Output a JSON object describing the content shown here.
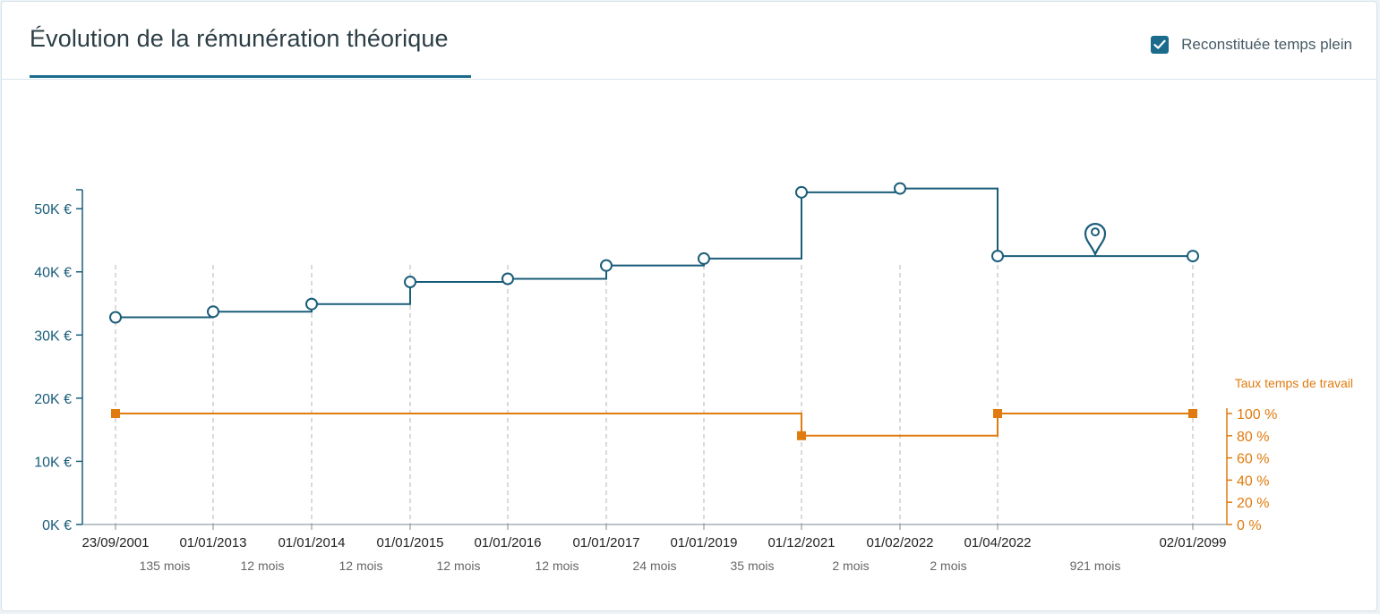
{
  "header": {
    "title": "Évolution de la rémunération théorique",
    "toggle_label": "Reconstituée temps plein",
    "toggle_checked": true
  },
  "colors": {
    "salary": "#1a5d7a",
    "rate": "#e07b0f",
    "accent": "#1a6b8c"
  },
  "icons": {
    "checkbox": "check-icon",
    "current_marker": "map-pin-icon"
  },
  "chart_data": {
    "type": "line",
    "step": true,
    "x_dates": [
      "23/09/2001",
      "01/01/2013",
      "01/01/2014",
      "01/01/2015",
      "01/01/2016",
      "01/01/2017",
      "01/01/2019",
      "01/12/2021",
      "01/02/2022",
      "01/04/2022",
      "02/01/2099"
    ],
    "durations": [
      "135 mois",
      "12 mois",
      "12 mois",
      "12 mois",
      "12 mois",
      "24 mois",
      "35 mois",
      "2 mois",
      "2 mois",
      "921 mois"
    ],
    "salary": {
      "values_k_eur": [
        32.8,
        33.7,
        34.9,
        38.4,
        38.9,
        41.0,
        42.1,
        52.6,
        53.2,
        42.5,
        42.5
      ],
      "ylim": [
        0,
        53
      ],
      "ticks": [
        "0K €",
        "10K €",
        "20K €",
        "30K €",
        "40K €",
        "50K €"
      ],
      "tick_values": [
        0,
        10,
        20,
        30,
        40,
        50
      ]
    },
    "rate": {
      "title": "Taux temps de travail",
      "points": [
        {
          "index": 0,
          "value": 100
        },
        {
          "index": 7,
          "value": 80
        },
        {
          "index": 9,
          "value": 100
        },
        {
          "index": 10,
          "value": 100
        }
      ],
      "ylim": [
        0,
        100
      ],
      "ticks": [
        "0 %",
        "20 %",
        "40 %",
        "60 %",
        "80 %",
        "100 %"
      ],
      "tick_values": [
        0,
        20,
        40,
        60,
        80,
        100
      ]
    },
    "current_marker_between": [
      9,
      10
    ],
    "grid": "vertical-dashed"
  }
}
